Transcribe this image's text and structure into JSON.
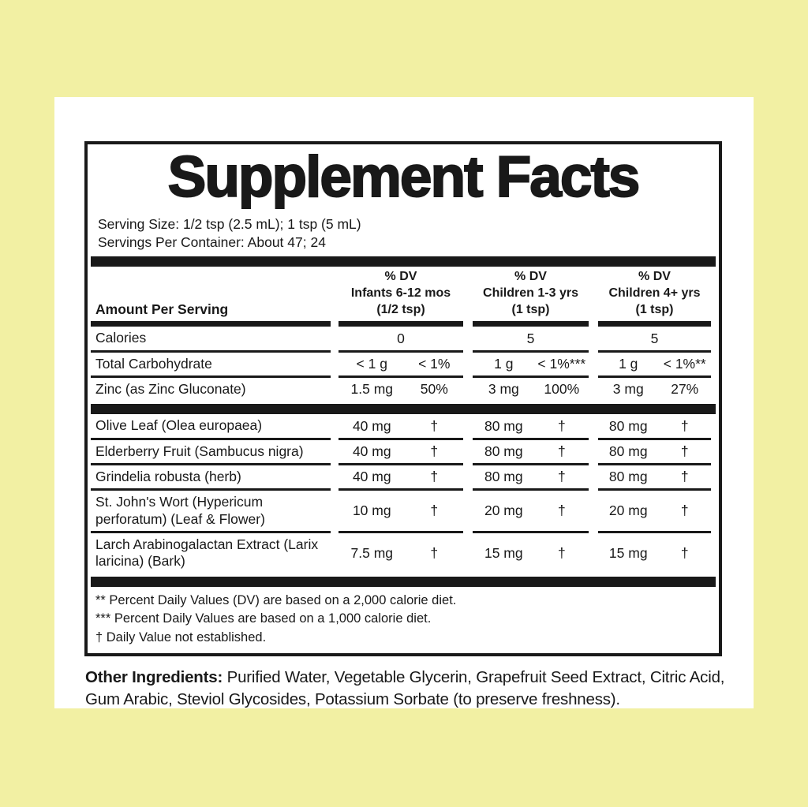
{
  "theme": {
    "page_bg": "#f2f0a3",
    "panel_bg": "#ffffff",
    "ink": "#191919"
  },
  "label": {
    "title": "Supplement Facts",
    "serving_size": "Serving Size: 1/2 tsp (2.5 mL); 1 tsp (5 mL)",
    "servings_per_container": "Servings Per Container: About 47; 24",
    "amount_header": "Amount Per Serving",
    "columns": [
      {
        "dv_label": "% DV",
        "group": "Infants 6-12 mos",
        "dose": "(1/2 tsp)"
      },
      {
        "dv_label": "% DV",
        "group": "Children 1-3 yrs",
        "dose": "(1 tsp)"
      },
      {
        "dv_label": "% DV",
        "group": "Children 4+ yrs",
        "dose": "(1 tsp)"
      }
    ],
    "sections": [
      {
        "rows": [
          {
            "name": "Calories",
            "single": true,
            "cells": [
              {
                "amount": "0"
              },
              {
                "amount": "5"
              },
              {
                "amount": "5"
              }
            ]
          },
          {
            "name": "Total Carbohydrate",
            "cells": [
              {
                "amount": "< 1 g",
                "dv": "< 1%"
              },
              {
                "amount": "1 g",
                "dv": "< 1%***"
              },
              {
                "amount": "1 g",
                "dv": "< 1%**"
              }
            ]
          },
          {
            "name": "Zinc (as Zinc Gluconate)",
            "cells": [
              {
                "amount": "1.5 mg",
                "dv": "50%"
              },
              {
                "amount": "3 mg",
                "dv": "100%"
              },
              {
                "amount": "3 mg",
                "dv": "27%"
              }
            ]
          }
        ]
      },
      {
        "rows": [
          {
            "name": "Olive Leaf (Olea europaea)",
            "cells": [
              {
                "amount": "40 mg",
                "dv": "†"
              },
              {
                "amount": "80 mg",
                "dv": "†"
              },
              {
                "amount": "80 mg",
                "dv": "†"
              }
            ]
          },
          {
            "name": "Elderberry Fruit (Sambucus nigra)",
            "cells": [
              {
                "amount": "40 mg",
                "dv": "†"
              },
              {
                "amount": "80 mg",
                "dv": "†"
              },
              {
                "amount": "80 mg",
                "dv": "†"
              }
            ]
          },
          {
            "name": "Grindelia robusta (herb)",
            "cells": [
              {
                "amount": "40 mg",
                "dv": "†"
              },
              {
                "amount": "80 mg",
                "dv": "†"
              },
              {
                "amount": "80 mg",
                "dv": "†"
              }
            ]
          },
          {
            "name": "St. John's Wort (Hypericum perforatum) (Leaf & Flower)",
            "cells": [
              {
                "amount": "10 mg",
                "dv": "†"
              },
              {
                "amount": "20 mg",
                "dv": "†"
              },
              {
                "amount": "20 mg",
                "dv": "†"
              }
            ]
          },
          {
            "name": "Larch Arabinogalactan Extract (Larix laricina) (Bark)",
            "cells": [
              {
                "amount": "7.5 mg",
                "dv": "†"
              },
              {
                "amount": "15 mg",
                "dv": "†"
              },
              {
                "amount": "15 mg",
                "dv": "†"
              }
            ]
          }
        ]
      }
    ],
    "footnotes": [
      "** Percent Daily Values (DV) are based on a 2,000 calorie diet.",
      "*** Percent Daily Values are based on a 1,000 calorie diet.",
      "† Daily Value not established."
    ],
    "other_ingredients": {
      "label": "Other Ingredients:",
      "text": "Purified Water, Vegetable Glycerin, Grapefruit Seed Extract, Citric Acid, Gum Arabic, Steviol Glycosides, Potassium Sorbate (to preserve freshness)."
    }
  }
}
